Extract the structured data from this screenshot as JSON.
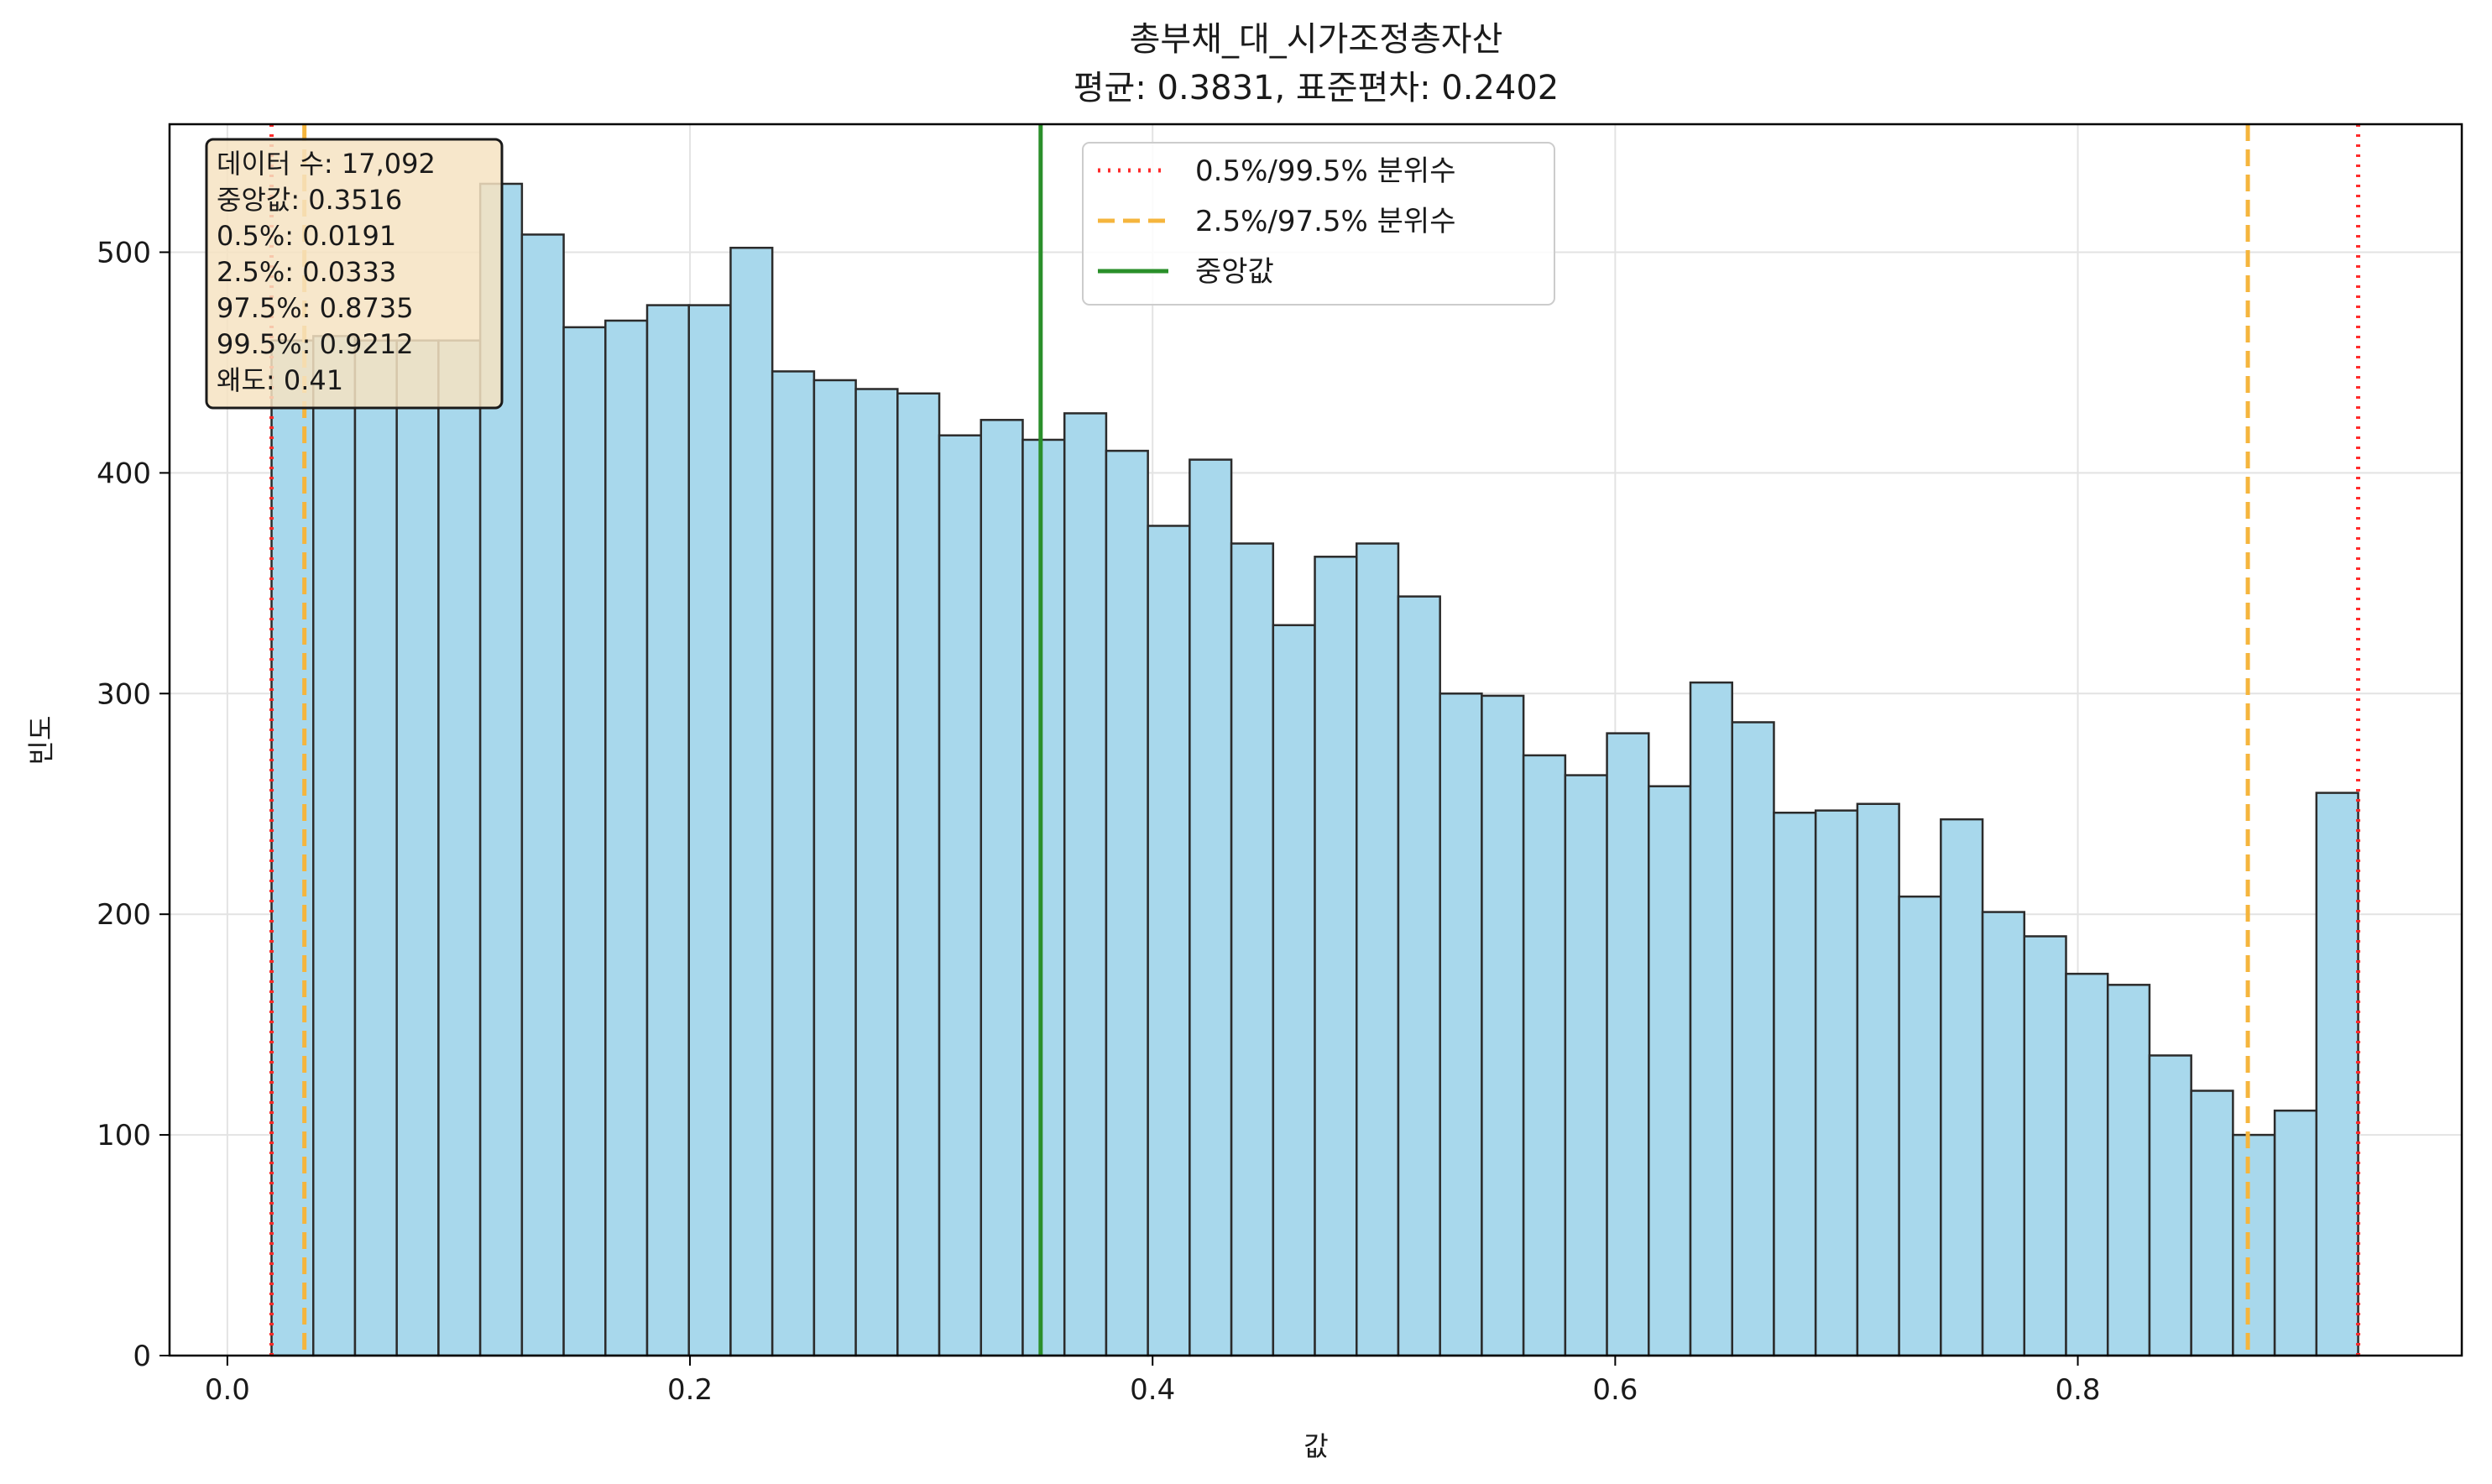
{
  "chart_data": {
    "type": "bar",
    "title": "총부채_대_시가조정총자산",
    "subtitle": "평균: 0.3831, 표준편차: 0.2402",
    "xlabel": "값",
    "ylabel": "빈도",
    "xlim": [
      -0.025,
      0.966
    ],
    "ylim": [
      0,
      558
    ],
    "xticks": [
      0.0,
      0.2,
      0.4,
      0.6,
      0.8
    ],
    "xtick_labels": [
      "0.0",
      "0.2",
      "0.4",
      "0.6",
      "0.8"
    ],
    "yticks": [
      0,
      100,
      200,
      300,
      400,
      500
    ],
    "ytick_labels": [
      "0",
      "100",
      "200",
      "300",
      "400",
      "500"
    ],
    "grid": true,
    "bin_start": 0.0191,
    "bin_end": 0.9212,
    "values": [
      460,
      462,
      460,
      460,
      460,
      531,
      508,
      466,
      469,
      476,
      476,
      502,
      446,
      442,
      438,
      436,
      417,
      424,
      415,
      427,
      410,
      376,
      406,
      368,
      331,
      362,
      368,
      344,
      300,
      299,
      272,
      263,
      282,
      258,
      305,
      287,
      246,
      247,
      250,
      208,
      243,
      201,
      190,
      173,
      168,
      136,
      120,
      100,
      111,
      255
    ],
    "bar_color": "#a8d8ec",
    "bar_edge_color": "#2b2b2b",
    "vlines": [
      {
        "x": 0.0191,
        "color": "#ff2a2a",
        "style": "dotted"
      },
      {
        "x": 0.9212,
        "color": "#ff2a2a",
        "style": "dotted"
      },
      {
        "x": 0.0333,
        "color": "#f5b53d",
        "style": "dashed"
      },
      {
        "x": 0.8735,
        "color": "#f5b53d",
        "style": "dashed"
      },
      {
        "x": 0.3516,
        "color": "#2a8f2a",
        "style": "solid"
      }
    ],
    "legend": {
      "position": "top-center",
      "entries": [
        {
          "label": "0.5%/99.5% 분위수",
          "color": "#ff2a2a",
          "style": "dotted"
        },
        {
          "label": "2.5%/97.5% 분위수",
          "color": "#f5b53d",
          "style": "dashed"
        },
        {
          "label": "중앙값",
          "color": "#2a8f2a",
          "style": "solid"
        }
      ]
    },
    "stats_box": {
      "position": "top-left",
      "background": "#f6e3c2",
      "lines": [
        "데이터 수: 17,092",
        "중앙값: 0.3516",
        "0.5%: 0.0191",
        "2.5%: 0.0333",
        "97.5%: 0.8735",
        "99.5%: 0.9212",
        "왜도: 0.41"
      ]
    }
  }
}
